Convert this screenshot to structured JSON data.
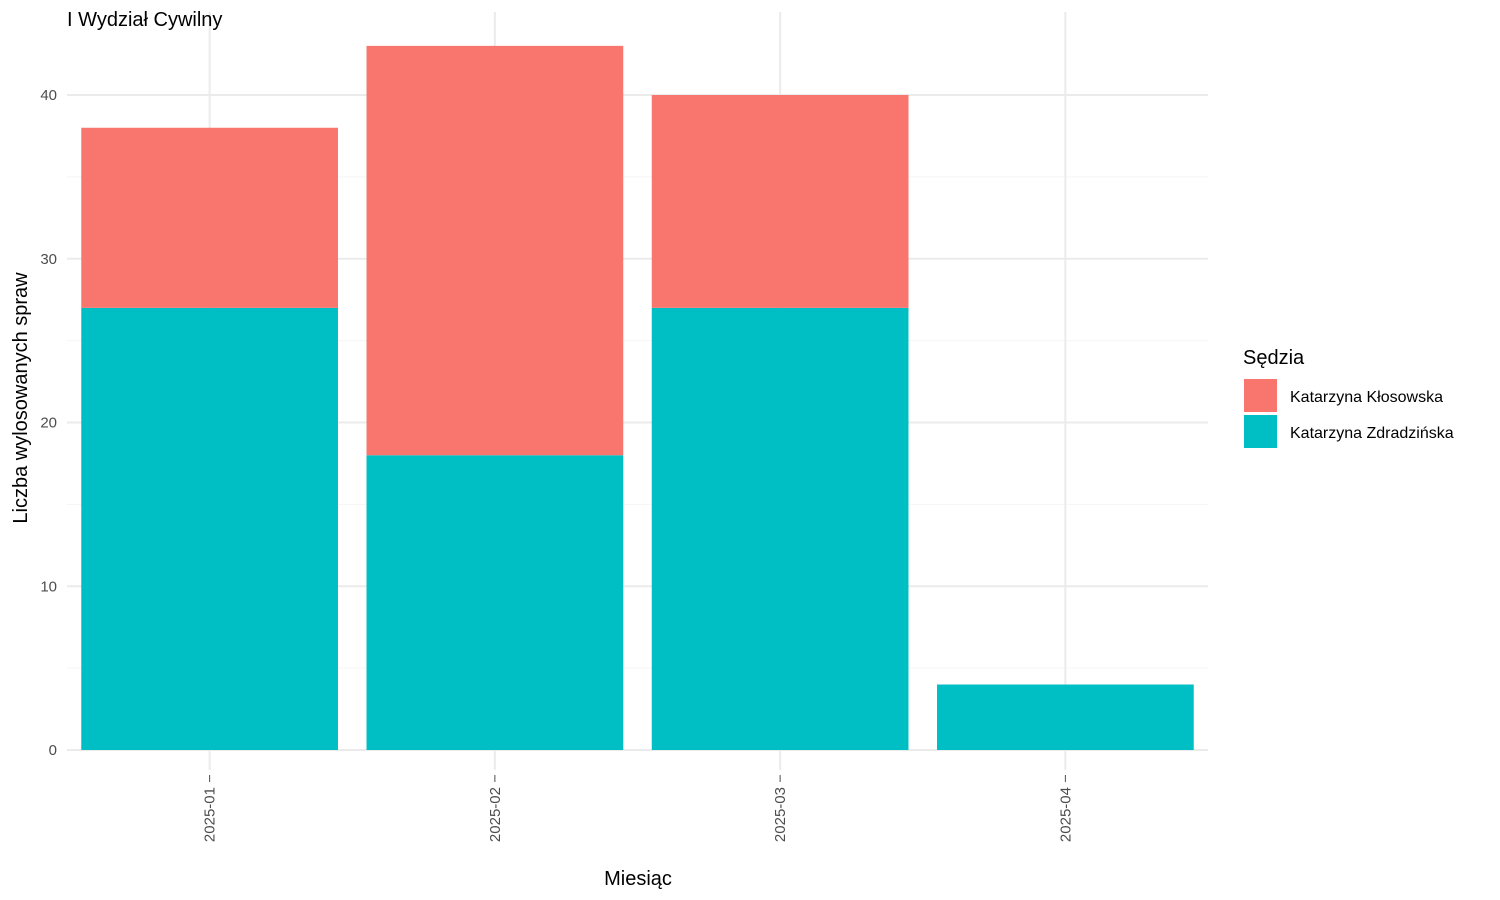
{
  "chart_data": {
    "type": "bar",
    "stacked": true,
    "title": "I Wydział Cywilny",
    "xlabel": "Miesiąc",
    "ylabel": "Liczba wylosowanych spraw",
    "categories": [
      "2025-01",
      "2025-02",
      "2025-03",
      "2025-04"
    ],
    "series": [
      {
        "name": "Katarzyna Zdradzińska",
        "color": "#00BFC4",
        "values": [
          27,
          18,
          27,
          4
        ]
      },
      {
        "name": "Katarzyna Kłosowska",
        "color": "#F8766D",
        "values": [
          11,
          25,
          13,
          0
        ]
      }
    ],
    "ylim": [
      0,
      43
    ],
    "yticks": [
      0,
      10,
      20,
      30,
      40
    ],
    "grid": true,
    "legend": {
      "title": "Sędzia",
      "placement": "right",
      "order": [
        "Katarzyna Kłosowska",
        "Katarzyna Zdradzińska"
      ]
    }
  }
}
